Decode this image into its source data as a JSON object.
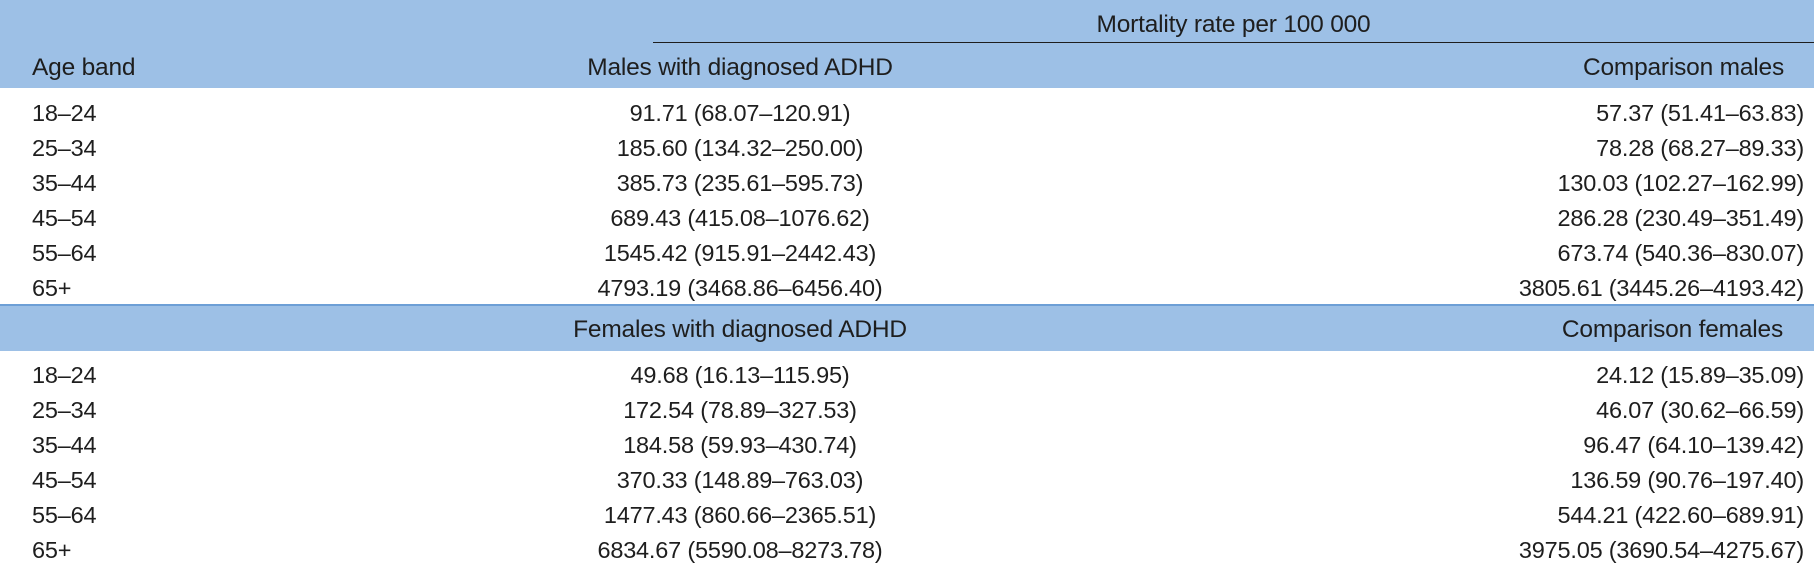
{
  "header": {
    "spanner": "Mortality rate per 100 000",
    "age_band": "Age band",
    "group1_label": "Males with diagnosed ADHD",
    "group1_comparison": "Comparison males",
    "group2_label": "Females with diagnosed ADHD",
    "group2_comparison": "Comparison females"
  },
  "males": [
    {
      "age": "18–24",
      "adhd": "91.71 (68.07–120.91)",
      "comparison": "57.37 (51.41–63.83)"
    },
    {
      "age": "25–34",
      "adhd": "185.60 (134.32–250.00)",
      "comparison": "78.28 (68.27–89.33)"
    },
    {
      "age": "35–44",
      "adhd": "385.73 (235.61–595.73)",
      "comparison": "130.03 (102.27–162.99)"
    },
    {
      "age": "45–54",
      "adhd": "689.43 (415.08–1076.62)",
      "comparison": "286.28 (230.49–351.49)"
    },
    {
      "age": "55–64",
      "adhd": "1545.42 (915.91–2442.43)",
      "comparison": "673.74 (540.36–830.07)"
    },
    {
      "age": "65+",
      "adhd": "4793.19 (3468.86–6456.40)",
      "comparison": "3805.61 (3445.26–4193.42)"
    }
  ],
  "females": [
    {
      "age": "18–24",
      "adhd": "49.68 (16.13–115.95)",
      "comparison": "24.12 (15.89–35.09)"
    },
    {
      "age": "25–34",
      "adhd": "172.54 (78.89–327.53)",
      "comparison": "46.07 (30.62–66.59)"
    },
    {
      "age": "35–44",
      "adhd": "184.58 (59.93–430.74)",
      "comparison": "96.47 (64.10–139.42)"
    },
    {
      "age": "45–54",
      "adhd": "370.33 (148.89–763.03)",
      "comparison": "136.59 (90.76–197.40)"
    },
    {
      "age": "55–64",
      "adhd": "1477.43 (860.66–2365.51)",
      "comparison": "544.21 (422.60–689.91)"
    },
    {
      "age": "65+",
      "adhd": "6834.67 (5590.08–8273.78)",
      "comparison": "3975.05 (3690.54–4275.67)"
    }
  ]
}
